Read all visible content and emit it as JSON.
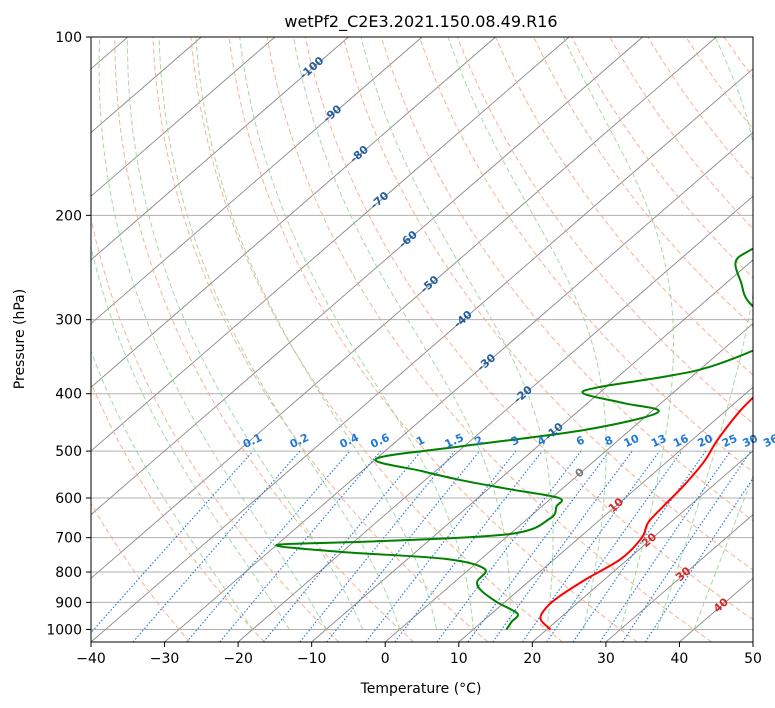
{
  "chart_data": {
    "type": "line",
    "title": "wetPf2_C2E3.2021.150.08.49.R16",
    "xlabel": "Temperature (°C)",
    "ylabel": "Pressure (hPa)",
    "xlim": [
      -40,
      50
    ],
    "ylim": [
      1050,
      100
    ],
    "y_scale": "log",
    "grid": true,
    "x_ticks": [
      "−40",
      "−30",
      "−20",
      "−10",
      "0",
      "10",
      "20",
      "30",
      "40",
      "50"
    ],
    "y_ticks": [
      {
        "p": 100,
        "label": "100"
      },
      {
        "p": 200,
        "label": "200"
      },
      {
        "p": 300,
        "label": "300"
      },
      {
        "p": 400,
        "label": "400"
      },
      {
        "p": 500,
        "label": "500"
      },
      {
        "p": 600,
        "label": "600"
      },
      {
        "p": 700,
        "label": "700"
      },
      {
        "p": 800,
        "label": "800"
      },
      {
        "p": 900,
        "label": "900"
      },
      {
        "p": 1000,
        "label": "1000"
      }
    ],
    "colors": {
      "temperature": "#ff0000",
      "dewpoint": "#008000",
      "isotherm": "#888888",
      "dry_adiabat": "#f4a582",
      "moist_adiabat": "#8fcf8f",
      "mixing_ratio": "#1f78d8",
      "isotherm_label": "#1f5f9f",
      "moist_label": "#d62728"
    },
    "series": [
      {
        "key": "temperature",
        "points": [
          [
            20.5,
            1000
          ],
          [
            17.5,
            960
          ],
          [
            16.5,
            920
          ],
          [
            16.5,
            880
          ],
          [
            17.5,
            820
          ],
          [
            19,
            760
          ],
          [
            18.5,
            700
          ],
          [
            17,
            660
          ],
          [
            16.5,
            620
          ],
          [
            16,
            570
          ],
          [
            15,
            520
          ],
          [
            13.5,
            480
          ],
          [
            12,
            430
          ],
          [
            11.5,
            400
          ],
          [
            10.5,
            370
          ],
          [
            8.5,
            340
          ],
          [
            6.5,
            315
          ],
          [
            7,
            290
          ],
          [
            7,
            270
          ],
          [
            5.5,
            250
          ],
          [
            5,
            230
          ],
          [
            3.5,
            210
          ],
          [
            2,
            190
          ],
          [
            0.5,
            175
          ],
          [
            0.5,
            160
          ],
          [
            2.5,
            148
          ],
          [
            6,
            135
          ],
          [
            9.5,
            122
          ],
          [
            12,
            112
          ],
          [
            13.5,
            105
          ],
          [
            13.5,
            100
          ]
        ]
      },
      {
        "key": "dewpoint",
        "points": [
          [
            14.5,
            1000
          ],
          [
            14,
            970
          ],
          [
            13.5,
            940
          ],
          [
            9,
            900
          ],
          [
            5,
            860
          ],
          [
            3,
            830
          ],
          [
            2,
            790
          ],
          [
            -5,
            760
          ],
          [
            -20,
            740
          ],
          [
            -30,
            720
          ],
          [
            -17,
            710
          ],
          [
            0,
            690
          ],
          [
            3,
            650
          ],
          [
            2,
            620
          ],
          [
            1,
            600
          ],
          [
            -7,
            580
          ],
          [
            -15,
            560
          ],
          [
            -22,
            540
          ],
          [
            -30,
            515
          ],
          [
            -20,
            490
          ],
          [
            -6,
            460
          ],
          [
            1,
            430
          ],
          [
            -5,
            415
          ],
          [
            -12,
            400
          ],
          [
            -11,
            390
          ],
          [
            -4,
            375
          ],
          [
            1,
            360
          ],
          [
            5,
            330
          ],
          [
            4,
            310
          ],
          [
            -4,
            280
          ],
          [
            -8,
            260
          ],
          [
            -12,
            240
          ],
          [
            -12,
            230
          ],
          [
            -10,
            215
          ],
          [
            -7,
            195
          ],
          [
            -6,
            175
          ],
          [
            -8,
            160
          ],
          [
            -10,
            145
          ],
          [
            -10,
            130
          ],
          [
            -9,
            118
          ],
          [
            -7,
            108
          ],
          [
            -5,
            100
          ]
        ]
      }
    ],
    "isotherm_labels": [
      {
        "t": -100,
        "p": 113,
        "text": "-100"
      },
      {
        "t": -90,
        "p": 135,
        "text": "-90"
      },
      {
        "t": -80,
        "p": 158,
        "text": "-80"
      },
      {
        "t": -70,
        "p": 189,
        "text": "-70"
      },
      {
        "t": -60,
        "p": 220,
        "text": "-60"
      },
      {
        "t": -50,
        "p": 262,
        "text": "-50"
      },
      {
        "t": -40,
        "p": 300,
        "text": "-40"
      },
      {
        "t": -30,
        "p": 355,
        "text": "-30"
      },
      {
        "t": -20,
        "p": 402,
        "text": "-20"
      },
      {
        "t": -10,
        "p": 464,
        "text": "-10"
      },
      {
        "t": 0,
        "p": 545,
        "text": "0"
      },
      {
        "t": 10,
        "p": 618,
        "text": "10"
      },
      {
        "t": 20,
        "p": 708,
        "text": "20"
      },
      {
        "t": 30,
        "p": 808,
        "text": "30"
      },
      {
        "t": 40,
        "p": 912,
        "text": "40"
      }
    ],
    "mixing_ratios": [
      0.1,
      0.2,
      0.4,
      0.6,
      1,
      1.5,
      2,
      3,
      4,
      6,
      8,
      10,
      13,
      16,
      20,
      25,
      30,
      36
    ],
    "mixing_ratio_labels": [
      "0.1",
      "0.2",
      "0.4",
      "0.6",
      "1",
      "1.5",
      "2",
      "3",
      "4",
      "6",
      "8",
      "10",
      "13",
      "16",
      "20",
      "25",
      "30",
      "36"
    ]
  }
}
